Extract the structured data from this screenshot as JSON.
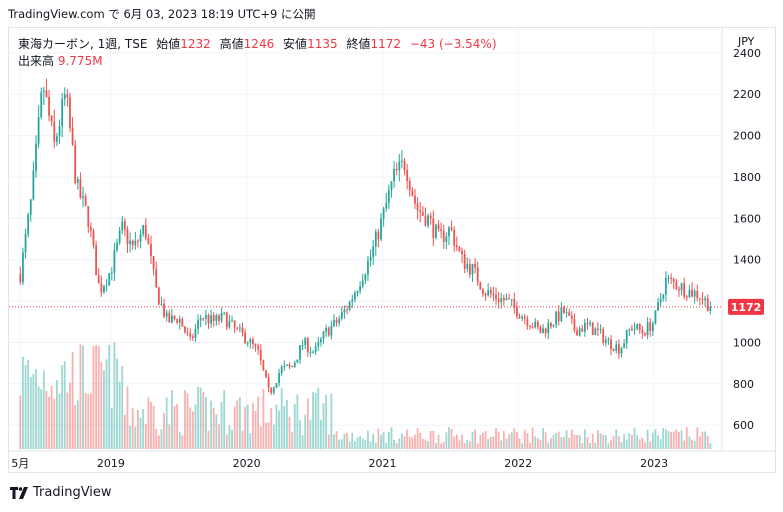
{
  "header": {
    "published": "TradingView.com で 6月 03, 2023 18:19 UTC+9 に公開"
  },
  "legend": {
    "symbol": "東海カーボン, 1週, TSE",
    "open_label": "始値",
    "open": "1232",
    "high_label": "高値",
    "high": "1246",
    "low_label": "安値",
    "low": "1135",
    "close_label": "終値",
    "close": "1172",
    "change": "−43 (−3.54%)",
    "volume_label": "出来高",
    "volume": "9.775M"
  },
  "footer": {
    "brand": "TradingView",
    "logo_icon": "tradingview-logo-icon"
  },
  "colors": {
    "up": "#26a69a",
    "down": "#ef5350",
    "grid": "#f0f3fa",
    "price_tag": "#f23645"
  },
  "chart_data": {
    "type": "candlestick",
    "currency": "JPY",
    "interval": "1 week",
    "y_ticks": [
      600,
      800,
      1000,
      1200,
      1400,
      1600,
      1800,
      2000,
      2200,
      2400
    ],
    "ylim": [
      480,
      2520
    ],
    "x_ticks": [
      {
        "label": "5月",
        "date": "2018-05"
      },
      {
        "label": "2019",
        "date": "2019-01"
      },
      {
        "label": "2020",
        "date": "2020-01"
      },
      {
        "label": "2021",
        "date": "2021-01"
      },
      {
        "label": "2022",
        "date": "2022-01"
      },
      {
        "label": "2023",
        "date": "2023-01"
      }
    ],
    "last_price": 1172,
    "last_price_label": "1172",
    "close_path": [
      [
        "2018-05",
        1330
      ],
      [
        "2018-06",
        1700
      ],
      [
        "2018-07",
        2250
      ],
      [
        "2018-08",
        1950
      ],
      [
        "2018-09",
        2200
      ],
      [
        "2018-10",
        1750
      ],
      [
        "2018-11",
        1600
      ],
      [
        "2018-12",
        1250
      ],
      [
        "2019-01",
        1350
      ],
      [
        "2019-02",
        1550
      ],
      [
        "2019-03",
        1450
      ],
      [
        "2019-04",
        1560
      ],
      [
        "2019-05",
        1250
      ],
      [
        "2019-06",
        1100
      ],
      [
        "2019-07",
        1120
      ],
      [
        "2019-08",
        1000
      ],
      [
        "2019-09",
        1130
      ],
      [
        "2019-10",
        1100
      ],
      [
        "2019-11",
        1120
      ],
      [
        "2019-12",
        1060
      ],
      [
        "2020-01",
        1020
      ],
      [
        "2020-02",
        950
      ],
      [
        "2020-03",
        750
      ],
      [
        "2020-04",
        870
      ],
      [
        "2020-05",
        880
      ],
      [
        "2020-06",
        1000
      ],
      [
        "2020-07",
        950
      ],
      [
        "2020-08",
        1050
      ],
      [
        "2020-09",
        1100
      ],
      [
        "2020-10",
        1180
      ],
      [
        "2020-11",
        1300
      ],
      [
        "2020-12",
        1420
      ],
      [
        "2021-01",
        1600
      ],
      [
        "2021-02",
        1800
      ],
      [
        "2021-03",
        1870
      ],
      [
        "2021-04",
        1650
      ],
      [
        "2021-05",
        1600
      ],
      [
        "2021-06",
        1500
      ],
      [
        "2021-07",
        1550
      ],
      [
        "2021-08",
        1400
      ],
      [
        "2021-09",
        1350
      ],
      [
        "2021-10",
        1250
      ],
      [
        "2021-11",
        1220
      ],
      [
        "2021-12",
        1200
      ],
      [
        "2022-01",
        1150
      ],
      [
        "2022-02",
        1100
      ],
      [
        "2022-03",
        1050
      ],
      [
        "2022-04",
        1100
      ],
      [
        "2022-05",
        1150
      ],
      [
        "2022-06",
        1060
      ],
      [
        "2022-07",
        1080
      ],
      [
        "2022-08",
        1050
      ],
      [
        "2022-09",
        1000
      ],
      [
        "2022-10",
        970
      ],
      [
        "2022-11",
        1080
      ],
      [
        "2022-12",
        1050
      ],
      [
        "2023-01",
        1100
      ],
      [
        "2023-02",
        1300
      ],
      [
        "2023-03",
        1280
      ],
      [
        "2023-04",
        1250
      ],
      [
        "2023-05",
        1230
      ],
      [
        "2023-06",
        1172
      ]
    ],
    "volume_max": 9775000
  }
}
